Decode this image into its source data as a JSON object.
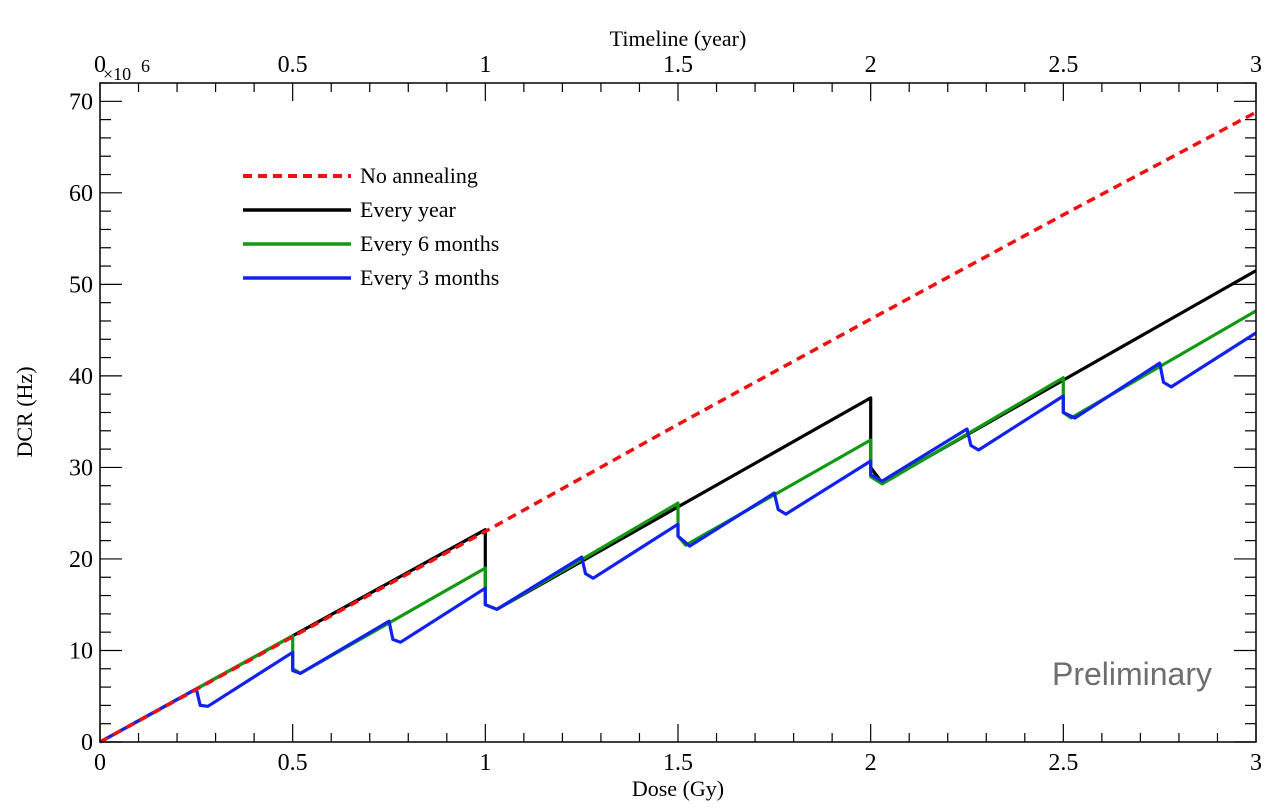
{
  "chart_data": {
    "type": "line",
    "xlabel": "Dose (Gy)",
    "x2label": "Timeline (year)",
    "ylabel": "DCR (Hz)",
    "y_exponent": "×10",
    "y_exponent_power": "6",
    "xlim": [
      0,
      3
    ],
    "x2lim": [
      0,
      3
    ],
    "ylim": [
      0,
      72
    ],
    "x_ticks": [
      {
        "v": 0,
        "label": "0"
      },
      {
        "v": 0.5,
        "label": "0.5"
      },
      {
        "v": 1,
        "label": "1"
      },
      {
        "v": 1.5,
        "label": "1.5"
      },
      {
        "v": 2,
        "label": "2"
      },
      {
        "v": 2.5,
        "label": "2.5"
      },
      {
        "v": 3,
        "label": "3"
      }
    ],
    "x2_ticks": [
      {
        "v": 0,
        "label": "0"
      },
      {
        "v": 0.5,
        "label": "0.5"
      },
      {
        "v": 1,
        "label": "1"
      },
      {
        "v": 1.5,
        "label": "1.5"
      },
      {
        "v": 2,
        "label": "2"
      },
      {
        "v": 2.5,
        "label": "2.5"
      },
      {
        "v": 3,
        "label": "3"
      }
    ],
    "y_ticks": [
      {
        "v": 0,
        "label": "0"
      },
      {
        "v": 10,
        "label": "10"
      },
      {
        "v": 20,
        "label": "20"
      },
      {
        "v": 30,
        "label": "30"
      },
      {
        "v": 40,
        "label": "40"
      },
      {
        "v": 50,
        "label": "50"
      },
      {
        "v": 60,
        "label": "60"
      },
      {
        "v": 70,
        "label": "70"
      }
    ],
    "legend_position": "top-left",
    "annotation": "Preliminary",
    "series": [
      {
        "name": "No annealing",
        "color": "#ee1111",
        "dashed": true,
        "x": [
          0,
          0.5,
          1,
          1.5,
          2,
          2.5,
          3
        ],
        "y": [
          0,
          11.5,
          23,
          34.7,
          46.2,
          57.6,
          68.8
        ]
      },
      {
        "name": "Every year",
        "color": "#000000",
        "dashed": false,
        "x": [
          0,
          1,
          1.0,
          1.03,
          2,
          2.0,
          2.03,
          3
        ],
        "y": [
          0,
          23.2,
          15.0,
          14.5,
          37.6,
          30.0,
          28.3,
          51.5
        ]
      },
      {
        "name": "Every 6 months",
        "color": "#119911",
        "dashed": false,
        "x": [
          0,
          0.5,
          0.5,
          0.52,
          1,
          1.0,
          1.03,
          1.5,
          1.5,
          1.52,
          2,
          2.0,
          2.03,
          2.5,
          2.5,
          2.52,
          3
        ],
        "y": [
          0,
          11.6,
          8.0,
          7.5,
          19.0,
          15.0,
          14.5,
          26.1,
          22.5,
          21.5,
          33.0,
          29.0,
          28.2,
          39.8,
          36.0,
          35.4,
          47.1
        ]
      },
      {
        "name": "Every 3 months",
        "color": "#1122ee",
        "dashed": false,
        "x": [
          0,
          0.25,
          0.26,
          0.28,
          0.5,
          0.5,
          0.52,
          0.75,
          0.76,
          0.78,
          1,
          1.0,
          1.03,
          1.25,
          1.26,
          1.28,
          1.5,
          1.5,
          1.53,
          1.75,
          1.76,
          1.78,
          2,
          2.0,
          2.03,
          2.25,
          2.26,
          2.28,
          2.5,
          2.5,
          2.53,
          2.75,
          2.76,
          2.78,
          3
        ],
        "y": [
          0,
          5.8,
          4.0,
          3.9,
          9.8,
          7.8,
          7.5,
          13.2,
          11.2,
          10.9,
          16.8,
          15.0,
          14.5,
          20.2,
          18.4,
          17.9,
          23.8,
          22.5,
          21.4,
          27.2,
          25.4,
          24.9,
          30.7,
          29.2,
          28.5,
          34.2,
          32.4,
          31.9,
          37.8,
          36.0,
          35.4,
          41.4,
          39.3,
          38.8,
          44.7
        ]
      }
    ]
  }
}
